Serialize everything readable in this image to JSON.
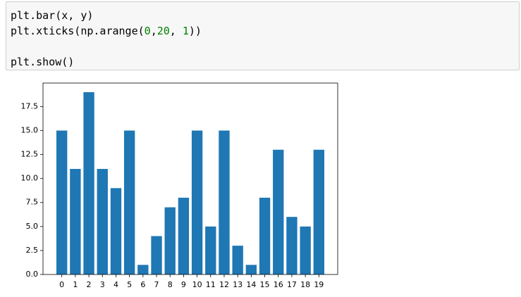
{
  "code": {
    "lines": [
      [
        "plt.bar(x, y)"
      ],
      [
        "plt.xticks(np.arange(",
        "0",
        ",",
        "20",
        ", ",
        "1",
        "))"
      ],
      [
        "plt.show()"
      ]
    ]
  },
  "chart_data": {
    "type": "bar",
    "x": [
      0,
      1,
      2,
      3,
      4,
      5,
      6,
      7,
      8,
      9,
      10,
      11,
      12,
      13,
      14,
      15,
      16,
      17,
      18,
      19
    ],
    "values": [
      15,
      11,
      19,
      11,
      9,
      15,
      1,
      4,
      7,
      8,
      15,
      5,
      15,
      3,
      1,
      8,
      13,
      6,
      5,
      13
    ],
    "color": "#1f77b4",
    "xlim": [
      -1.39,
      20.39
    ],
    "xticks": [
      0,
      1,
      2,
      3,
      4,
      5,
      6,
      7,
      8,
      9,
      10,
      11,
      12,
      13,
      14,
      15,
      16,
      17,
      18,
      19
    ],
    "ylim": [
      0,
      19.95
    ],
    "yticks": [
      {
        "value": 0,
        "label": "0.0"
      },
      2.5,
      {
        "value": 5,
        "label": "5.0"
      },
      7.5,
      {
        "value": 10,
        "label": "10.0"
      },
      12.5,
      {
        "value": 15,
        "label": "15.0"
      },
      17.5
    ],
    "grid": false
  }
}
